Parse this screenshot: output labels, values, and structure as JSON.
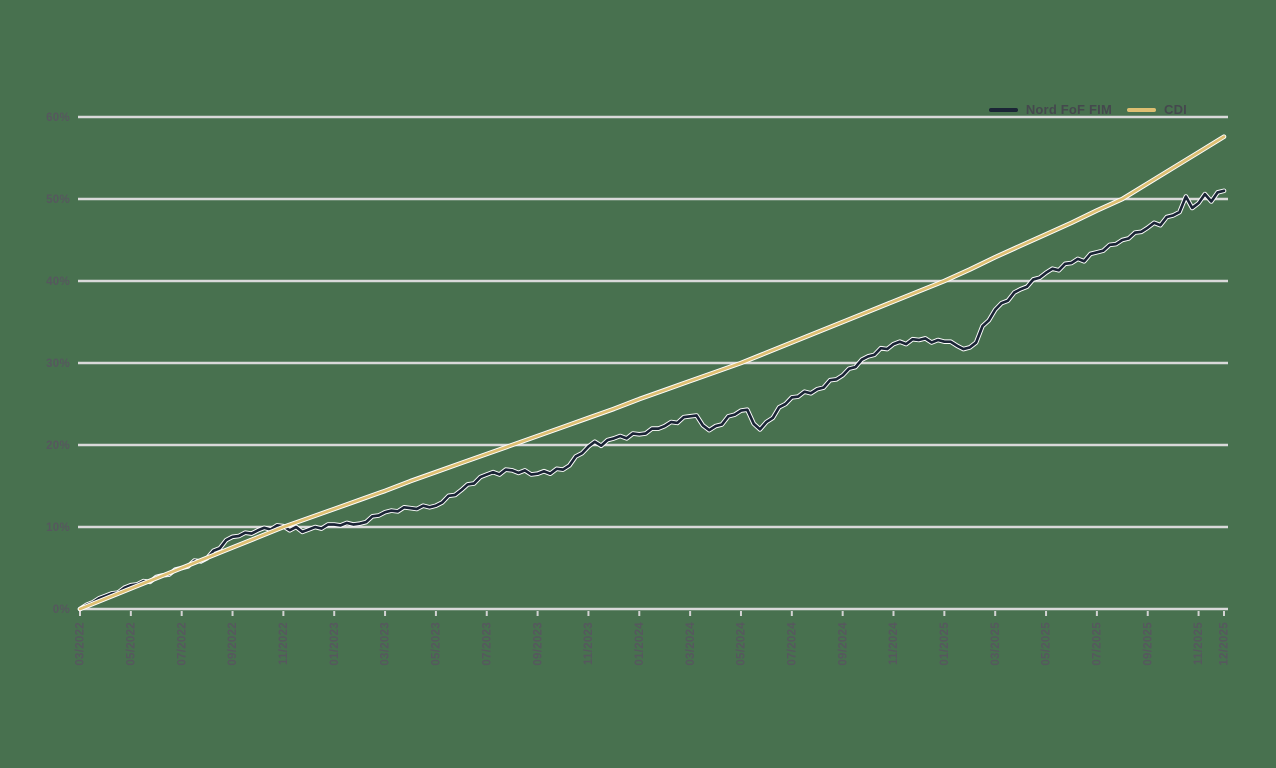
{
  "colors": {
    "background": "#48714f",
    "gridline": "#d9d9d9",
    "tick": "#d3d3d3",
    "axis_label": "#56585e",
    "legend_text": "#45484e",
    "halo": "#ffffff",
    "series_nord": "#1b2536",
    "series_cdi": "#debf72"
  },
  "chart_data": {
    "type": "line",
    "title": "",
    "xlabel": "",
    "ylabel": "",
    "grid": "horizontal",
    "legend_position": "top-right",
    "ylim": [
      0,
      60
    ],
    "y_tick_labels": [
      "0%",
      "10%",
      "20%",
      "30%",
      "40%",
      "50%",
      "60%"
    ],
    "x_range_months": 45,
    "x_tick_months": [
      0,
      2,
      4,
      6,
      8,
      10,
      12,
      14,
      16,
      18,
      20,
      22,
      24,
      26,
      28,
      30,
      32,
      34,
      36,
      38,
      40,
      42,
      44,
      45
    ],
    "x_tick_labels": [
      "03/2022",
      "05/2022",
      "07/2022",
      "09/2022",
      "11/2022",
      "01/2023",
      "03/2023",
      "05/2023",
      "07/2023",
      "09/2023",
      "11/2023",
      "01/2024",
      "03/2024",
      "05/2024",
      "07/2024",
      "09/2024",
      "11/2024",
      "01/2025",
      "03/2025",
      "05/2025",
      "07/2025",
      "09/2025",
      "11/2025",
      "12/2025"
    ],
    "series": [
      {
        "name": "Nord FoF FIM",
        "color": "#1b2536",
        "unit": "% cumulative return",
        "values": [
          0.0,
          0.5,
          0.8,
          1.3,
          1.6,
          1.9,
          2.0,
          2.6,
          2.9,
          3.0,
          3.4,
          3.3,
          3.9,
          4.1,
          4.2,
          4.8,
          5.0,
          5.2,
          5.9,
          5.8,
          6.2,
          7.1,
          7.4,
          8.4,
          8.8,
          8.9,
          9.3,
          9.2,
          9.6,
          9.9,
          9.7,
          10.2,
          10.1,
          9.6,
          10.0,
          9.4,
          9.7,
          10.0,
          9.8,
          10.3,
          10.3,
          10.2,
          10.5,
          10.3,
          10.4,
          10.6,
          11.3,
          11.4,
          11.8,
          12.0,
          11.9,
          12.4,
          12.3,
          12.2,
          12.6,
          12.4,
          12.6,
          13.0,
          13.8,
          13.9,
          14.5,
          15.2,
          15.3,
          16.1,
          16.4,
          16.7,
          16.4,
          17.0,
          16.9,
          16.6,
          16.9,
          16.4,
          16.5,
          16.8,
          16.5,
          17.1,
          17.0,
          17.5,
          18.6,
          19.0,
          19.8,
          20.4,
          19.9,
          20.6,
          20.8,
          21.1,
          20.8,
          21.4,
          21.3,
          21.4,
          22.0,
          22.0,
          22.3,
          22.8,
          22.7,
          23.4,
          23.5,
          23.6,
          22.4,
          21.8,
          22.3,
          22.5,
          23.5,
          23.7,
          24.2,
          24.3,
          22.6,
          21.9,
          22.8,
          23.3,
          24.6,
          25.0,
          25.8,
          25.9,
          26.5,
          26.3,
          26.8,
          27.0,
          27.9,
          28.0,
          28.5,
          29.3,
          29.5,
          30.4,
          30.8,
          31.0,
          31.8,
          31.7,
          32.3,
          32.6,
          32.3,
          32.9,
          32.8,
          33.0,
          32.5,
          32.8,
          32.6,
          32.6,
          32.1,
          31.7,
          31.9,
          32.5,
          34.5,
          35.2,
          36.5,
          37.3,
          37.6,
          38.6,
          39.0,
          39.3,
          40.2,
          40.4,
          41.0,
          41.5,
          41.3,
          42.1,
          42.2,
          42.7,
          42.4,
          43.3,
          43.5,
          43.7,
          44.4,
          44.5,
          45.0,
          45.2,
          45.9,
          46.0,
          46.5,
          47.1,
          46.8,
          47.8,
          48.0,
          48.4,
          50.3,
          48.9,
          49.5,
          50.6,
          49.7,
          50.8,
          51.0
        ]
      },
      {
        "name": "CDI",
        "color": "#debf72",
        "unit": "% cumulative return",
        "values": [
          0.0,
          1.25,
          2.5,
          3.75,
          5.0,
          6.25,
          7.5,
          8.75,
          10.0,
          11.1,
          12.2,
          13.3,
          14.4,
          15.6,
          16.7,
          17.8,
          18.9,
          20.0,
          21.1,
          22.2,
          23.3,
          24.4,
          25.6,
          26.7,
          27.8,
          28.9,
          30.0,
          31.25,
          32.5,
          33.75,
          35.0,
          36.25,
          37.5,
          38.75,
          40.0,
          41.4,
          42.9,
          44.3,
          45.7,
          47.1,
          48.6,
          50.0,
          51.9,
          53.8,
          55.7,
          57.6
        ]
      }
    ]
  }
}
